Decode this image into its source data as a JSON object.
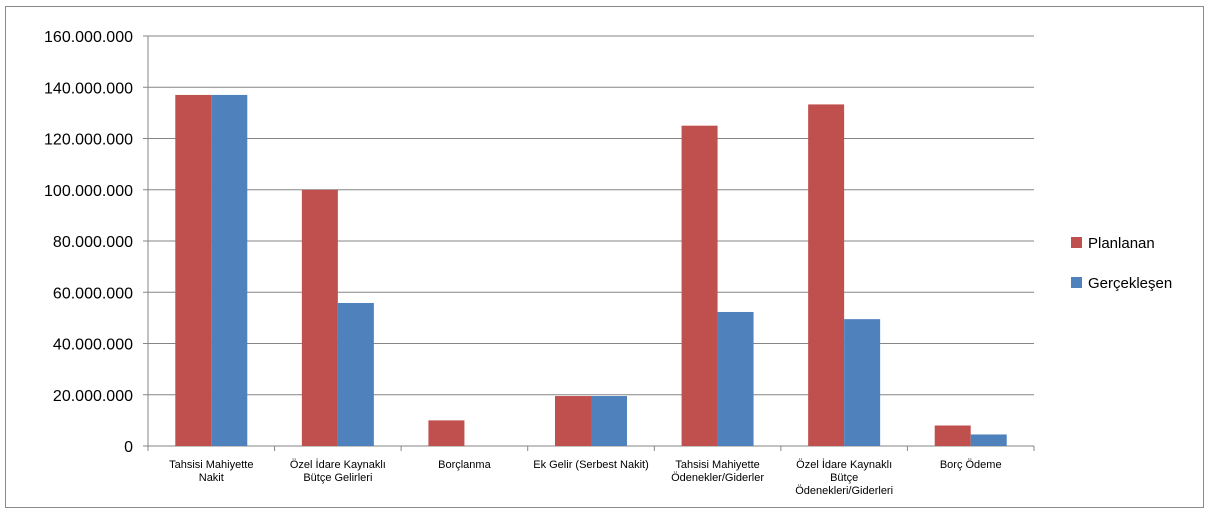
{
  "chart_data": {
    "type": "bar",
    "categories": [
      [
        "Tahsisi Mahiyette",
        "Nakit"
      ],
      [
        "Özel İdare Kaynaklı",
        "Bütçe Gelirleri"
      ],
      [
        "Borçlanma"
      ],
      [
        "Ek Gelir (Serbest Nakit)"
      ],
      [
        "Tahsisi Mahiyette",
        "Ödenekler/Giderler"
      ],
      [
        "Özel İdare Kaynaklı",
        "Bütçe",
        "Ödenekleri/Giderleri"
      ],
      [
        "Borç Ödeme"
      ]
    ],
    "series": [
      {
        "name": "Planlanan",
        "color": "#c0504d",
        "values": [
          137000000,
          100000000,
          10000000,
          19500000,
          125000000,
          133300000,
          8000000
        ]
      },
      {
        "name": "Gerçekleşen",
        "color": "#4f81bd",
        "values": [
          137000000,
          55800000,
          0,
          19500000,
          52300000,
          49500000,
          4500000
        ]
      }
    ],
    "ylim": [
      0,
      160000000
    ],
    "ytick_step": 20000000,
    "ytick_labels": [
      "0",
      "20.000.000",
      "40.000.000",
      "60.000.000",
      "80.000.000",
      "100.000.000",
      "120.000.000",
      "140.000.000",
      "160.000.000"
    ],
    "grid": true,
    "legend_position": "right",
    "title": "",
    "xlabel": "",
    "ylabel": ""
  }
}
